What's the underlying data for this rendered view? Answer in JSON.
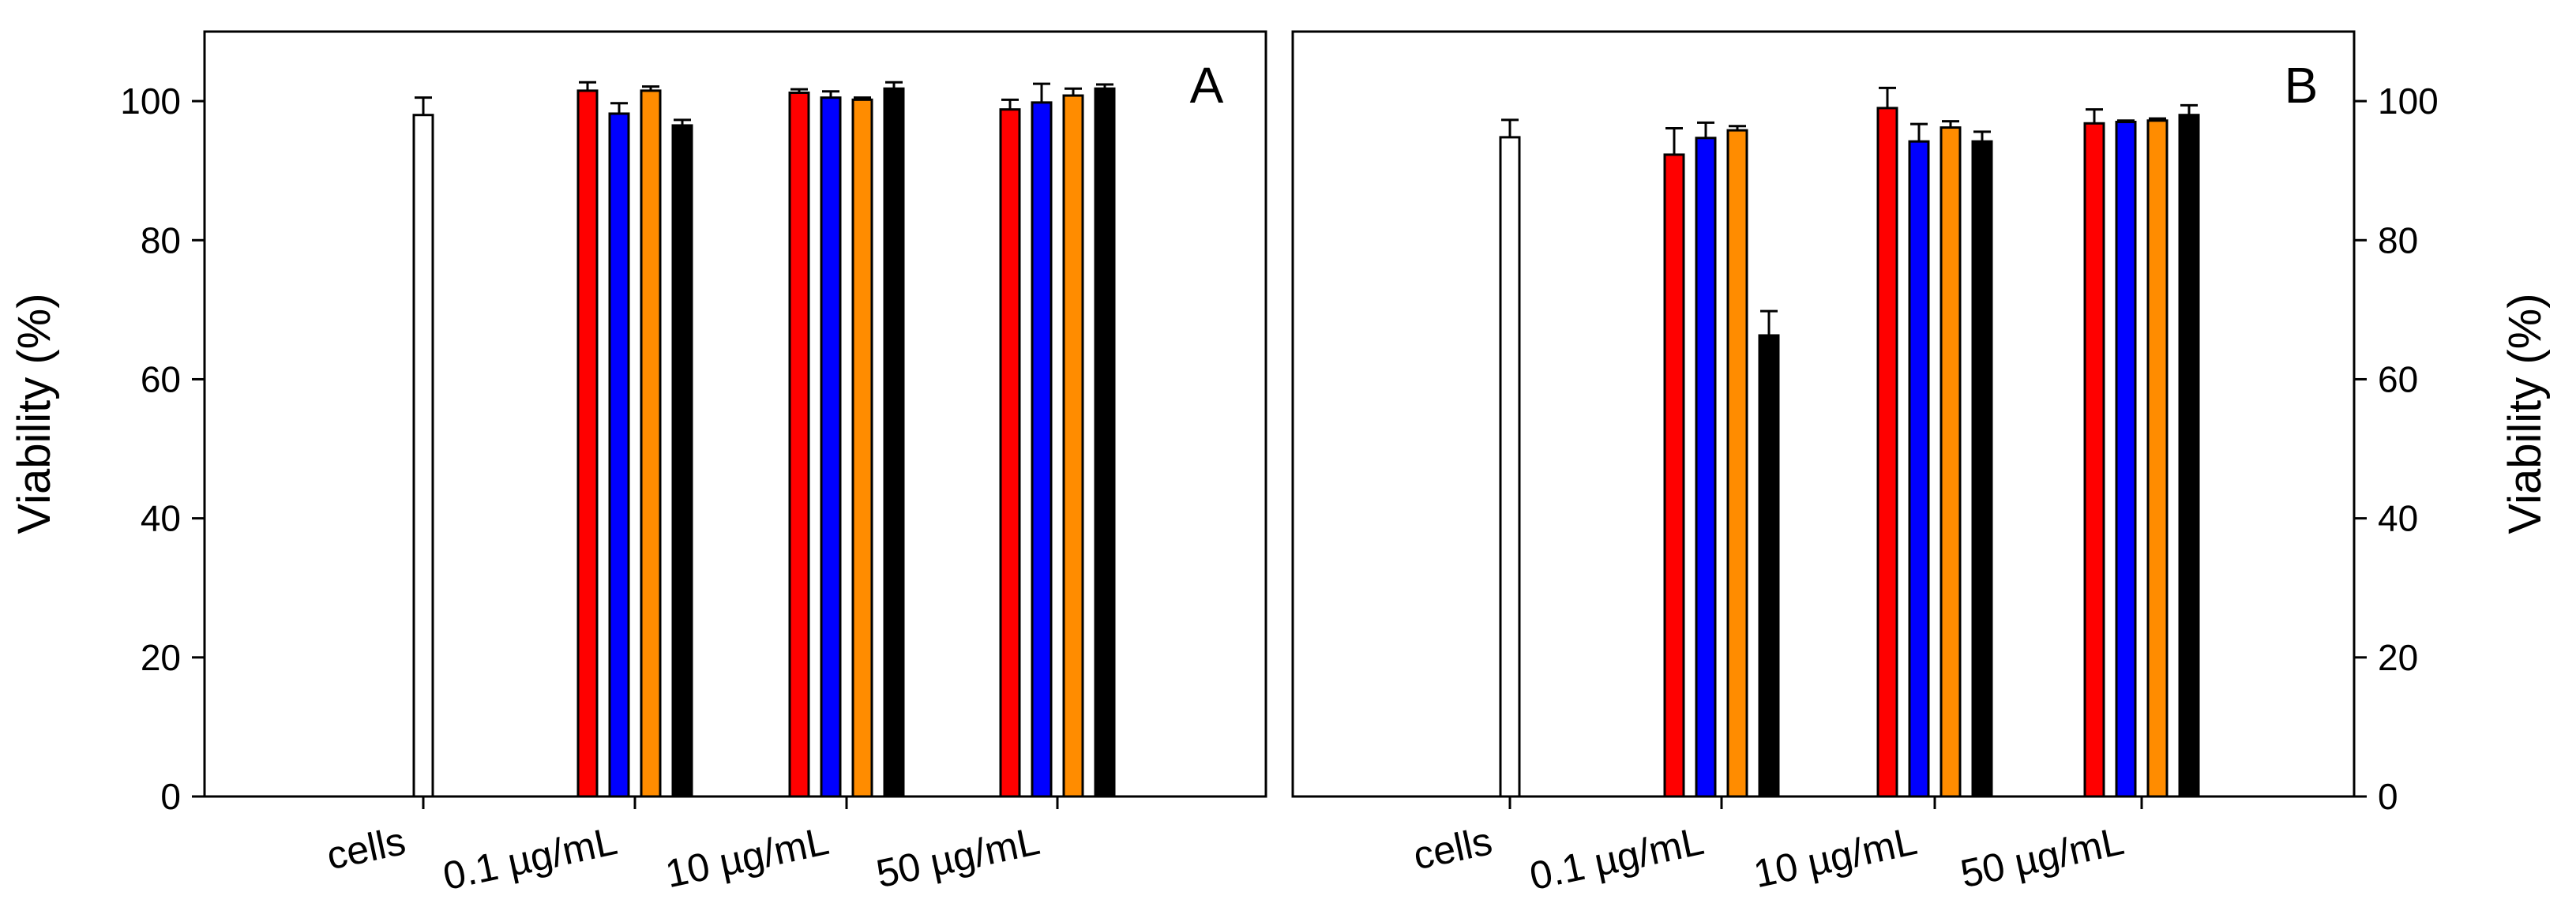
{
  "chart_data": [
    {
      "type": "bar",
      "panel_label": "A",
      "ylabel": "Viability (%)",
      "y_axis_side": "left",
      "ylim": [
        0,
        110
      ],
      "yticks": [
        "0",
        "20",
        "40",
        "60",
        "80",
        "100"
      ],
      "categories": [
        "cells",
        "0.1 µg/mL",
        "10 µg/mL",
        "50 µg/mL"
      ],
      "series": [
        {
          "name": "control",
          "color": "#ffffff",
          "values": [
            98,
            null,
            null,
            null
          ],
          "errors": [
            2.5,
            null,
            null,
            null
          ]
        },
        {
          "name": "red",
          "color": "#ff0000",
          "values": [
            null,
            101.5,
            101.2,
            98.8
          ],
          "errors": [
            null,
            1.2,
            0.5,
            1.4
          ]
        },
        {
          "name": "blue",
          "color": "#0000ff",
          "values": [
            null,
            98.2,
            100.5,
            99.8
          ],
          "errors": [
            null,
            1.5,
            0.9,
            2.7
          ]
        },
        {
          "name": "orange",
          "color": "#ff8c00",
          "values": [
            null,
            101.5,
            100.2,
            100.8
          ],
          "errors": [
            null,
            0.6,
            0.3,
            1.0
          ]
        },
        {
          "name": "black",
          "color": "#000000",
          "values": [
            null,
            96.5,
            101.8,
            101.8
          ],
          "errors": [
            null,
            0.8,
            0.9,
            0.6
          ]
        }
      ]
    },
    {
      "type": "bar",
      "panel_label": "B",
      "ylabel": "Viability (%)",
      "y_axis_side": "right",
      "ylim": [
        0,
        110
      ],
      "yticks": [
        "0",
        "20",
        "40",
        "60",
        "80",
        "100"
      ],
      "categories": [
        "cells",
        "0.1 µg/mL",
        "10 µg/mL",
        "50 µg/mL"
      ],
      "series": [
        {
          "name": "control",
          "color": "#ffffff",
          "values": [
            94.8,
            null,
            null,
            null
          ],
          "errors": [
            2.5,
            null,
            null,
            null
          ]
        },
        {
          "name": "red",
          "color": "#ff0000",
          "values": [
            null,
            92.3,
            99.0,
            96.8
          ],
          "errors": [
            null,
            3.8,
            2.9,
            2.0
          ]
        },
        {
          "name": "blue",
          "color": "#0000ff",
          "values": [
            null,
            94.7,
            94.2,
            97.0
          ],
          "errors": [
            null,
            2.2,
            2.5,
            0.2
          ]
        },
        {
          "name": "orange",
          "color": "#ff8c00",
          "values": [
            null,
            95.8,
            96.2,
            97.2
          ],
          "errors": [
            null,
            0.6,
            0.9,
            0.3
          ]
        },
        {
          "name": "black",
          "color": "#000000",
          "values": [
            null,
            66.3,
            94.2,
            98.0
          ],
          "errors": [
            null,
            3.5,
            1.4,
            1.4
          ]
        }
      ]
    }
  ]
}
